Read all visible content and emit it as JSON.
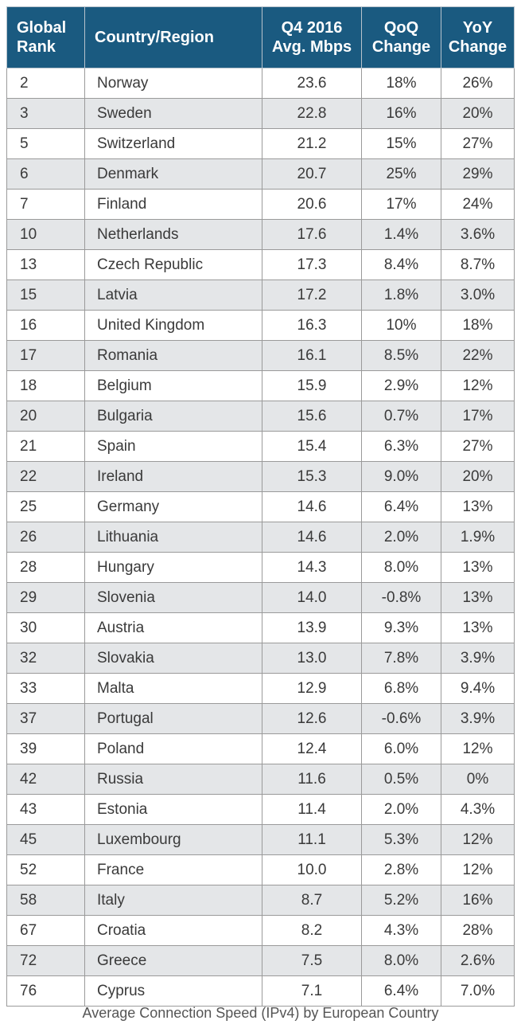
{
  "chart_data": {
    "type": "table",
    "title": "Average Connection Speed (IPv4) by European Country",
    "columns": [
      "Global Rank",
      "Country/Region",
      "Q4 2016 Avg. Mbps",
      "QoQ Change",
      "YoY Change"
    ],
    "header_lines": [
      [
        "Global",
        "Rank"
      ],
      [
        "Country/Region"
      ],
      [
        "Q4 2016",
        "Avg. Mbps"
      ],
      [
        "QoQ",
        "Change"
      ],
      [
        "YoY",
        "Change"
      ]
    ],
    "rows": [
      [
        "2",
        "Norway",
        "23.6",
        "18%",
        "26%"
      ],
      [
        "3",
        "Sweden",
        "22.8",
        "16%",
        "20%"
      ],
      [
        "5",
        "Switzerland",
        "21.2",
        "15%",
        "27%"
      ],
      [
        "6",
        "Denmark",
        "20.7",
        "25%",
        "29%"
      ],
      [
        "7",
        "Finland",
        "20.6",
        "17%",
        "24%"
      ],
      [
        "10",
        "Netherlands",
        "17.6",
        "1.4%",
        "3.6%"
      ],
      [
        "13",
        "Czech Republic",
        "17.3",
        "8.4%",
        "8.7%"
      ],
      [
        "15",
        "Latvia",
        "17.2",
        "1.8%",
        "3.0%"
      ],
      [
        "16",
        "United Kingdom",
        "16.3",
        "10%",
        "18%"
      ],
      [
        "17",
        "Romania",
        "16.1",
        "8.5%",
        "22%"
      ],
      [
        "18",
        "Belgium",
        "15.9",
        "2.9%",
        "12%"
      ],
      [
        "20",
        "Bulgaria",
        "15.6",
        "0.7%",
        "17%"
      ],
      [
        "21",
        "Spain",
        "15.4",
        "6.3%",
        "27%"
      ],
      [
        "22",
        "Ireland",
        "15.3",
        "9.0%",
        "20%"
      ],
      [
        "25",
        "Germany",
        "14.6",
        "6.4%",
        "13%"
      ],
      [
        "26",
        "Lithuania",
        "14.6",
        "2.0%",
        "1.9%"
      ],
      [
        "28",
        "Hungary",
        "14.3",
        "8.0%",
        "13%"
      ],
      [
        "29",
        "Slovenia",
        "14.0",
        "-0.8%",
        "13%"
      ],
      [
        "30",
        "Austria",
        "13.9",
        "9.3%",
        "13%"
      ],
      [
        "32",
        "Slovakia",
        "13.0",
        "7.8%",
        "3.9%"
      ],
      [
        "33",
        "Malta",
        "12.9",
        "6.8%",
        "9.4%"
      ],
      [
        "37",
        "Portugal",
        "12.6",
        "-0.6%",
        "3.9%"
      ],
      [
        "39",
        "Poland",
        "12.4",
        "6.0%",
        "12%"
      ],
      [
        "42",
        "Russia",
        "11.6",
        "0.5%",
        "0%"
      ],
      [
        "43",
        "Estonia",
        "11.4",
        "2.0%",
        "4.3%"
      ],
      [
        "45",
        "Luxembourg",
        "11.1",
        "5.3%",
        "12%"
      ],
      [
        "52",
        "France",
        "10.0",
        "2.8%",
        "12%"
      ],
      [
        "58",
        "Italy",
        "8.7",
        "5.2%",
        "16%"
      ],
      [
        "67",
        "Croatia",
        "8.2",
        "4.3%",
        "28%"
      ],
      [
        "72",
        "Greece",
        "7.5",
        "8.0%",
        "2.6%"
      ],
      [
        "76",
        "Cyprus",
        "7.1",
        "6.4%",
        "7.0%"
      ]
    ]
  },
  "colors": {
    "header_bg": "#1a5a80",
    "header_text": "#ffffff",
    "stripe": "#e4e6e8",
    "border": "#9a9a9a",
    "text": "#3a3a3a"
  }
}
